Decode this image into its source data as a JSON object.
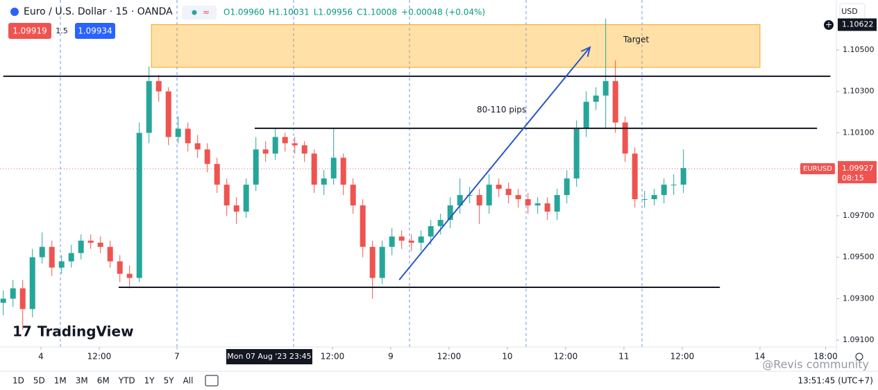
{
  "header": {
    "title": "Euro / U.S. Dollar · 15 · OANDA",
    "ohlc": [
      "O1.09960",
      "H1.10031",
      "L1.09956",
      "C1.10008",
      "+0.00048 (+0.04%)"
    ],
    "sell": "1.09919",
    "spread": "1.5",
    "buy": "1.09934",
    "currency": "USD"
  },
  "chart_data": {
    "type": "candlestick",
    "x": [
      -31,
      -23,
      -15,
      -7,
      1,
      9,
      17,
      25,
      33,
      41,
      49,
      57,
      65,
      73,
      81,
      89,
      97,
      105,
      113,
      121,
      129,
      137,
      145,
      153,
      161,
      169,
      177,
      185,
      193,
      201,
      209,
      217,
      225,
      233,
      241,
      249,
      257,
      265,
      273,
      281,
      289,
      297,
      305,
      313,
      321,
      329,
      337,
      345,
      353,
      361,
      369,
      377,
      385,
      393,
      401,
      409,
      417,
      425,
      433,
      441,
      449,
      457,
      465,
      473,
      481,
      489,
      497,
      505,
      513,
      521,
      529
    ],
    "series": [
      {
        "name": "EURUSD",
        "up_color": "#26a69a",
        "down_color": "#ef5350",
        "open": [
          1.0928,
          1.093,
          1.0935,
          1.0925,
          1.095,
          1.0955,
          1.0945,
          1.0948,
          1.0952,
          1.0958,
          1.0957,
          1.0955,
          1.0948,
          1.0942,
          1.094,
          1.101,
          1.1035,
          1.103,
          1.1008,
          1.1012,
          1.1005,
          1.1002,
          1.0995,
          1.0985,
          1.0975,
          1.0972,
          1.0985,
          1.1002,
          1.1,
          1.1008,
          1.1005,
          1.1004,
          1.1,
          1.0985,
          1.0988,
          1.0998,
          1.0985,
          1.0975,
          1.0955,
          1.094,
          1.0955,
          1.096,
          1.0958,
          1.0957,
          1.096,
          1.0965,
          1.0968,
          1.0975,
          1.098,
          1.098,
          1.0975,
          1.0985,
          1.0983,
          1.098,
          1.0978,
          1.0975,
          1.0976,
          1.0972,
          1.098,
          1.0988,
          1.1012,
          1.1025,
          1.1028,
          1.1035,
          1.1015,
          1.1,
          1.0978,
          1.0978,
          1.098,
          1.0985,
          1.0985
        ],
        "high": [
          1.0934,
          1.0939,
          1.0939,
          1.0954,
          1.0962,
          1.0958,
          1.0951,
          1.0956,
          1.0961,
          1.0961,
          1.096,
          1.0958,
          1.0951,
          1.0946,
          1.1015,
          1.1042,
          1.1038,
          1.1032,
          1.1018,
          1.1015,
          1.1009,
          1.1005,
          1.0998,
          1.0988,
          1.0979,
          1.0988,
          1.1008,
          1.1006,
          1.1012,
          1.101,
          1.1008,
          1.1006,
          1.1002,
          1.0992,
          1.1012,
          1.1,
          1.0988,
          1.0978,
          1.0958,
          1.0958,
          1.0964,
          1.0963,
          1.0961,
          1.0963,
          1.0968,
          1.0971,
          1.0979,
          1.0988,
          1.0984,
          1.0983,
          1.099,
          1.0988,
          1.0986,
          1.0983,
          1.0981,
          1.0979,
          1.0979,
          1.0983,
          1.0992,
          1.1016,
          1.103,
          1.1032,
          1.1065,
          1.1045,
          1.1018,
          1.1003,
          1.0982,
          1.0983,
          1.0988,
          1.099,
          1.1002
        ],
        "low": [
          1.0922,
          1.0926,
          1.0915,
          1.0921,
          1.0947,
          1.0941,
          1.0942,
          1.0945,
          1.0949,
          1.0954,
          1.0952,
          1.0945,
          1.0938,
          1.0935,
          1.0938,
          1.1005,
          1.1025,
          1.1004,
          1.1005,
          1.1001,
          1.0998,
          1.0991,
          1.0981,
          1.097,
          1.0966,
          1.0969,
          1.0982,
          1.0996,
          1.0997,
          1.1001,
          1.1,
          1.0996,
          1.0981,
          1.098,
          1.0985,
          1.098,
          1.0971,
          1.095,
          1.093,
          1.0937,
          1.0951,
          1.0954,
          1.0953,
          1.0953,
          1.0956,
          1.0961,
          1.0964,
          1.0971,
          1.0976,
          1.0966,
          1.0971,
          1.0979,
          1.0976,
          1.0974,
          1.0971,
          1.0971,
          1.0968,
          1.0968,
          1.0976,
          1.0984,
          1.1008,
          1.1021,
          1.1012,
          1.101,
          1.0996,
          1.0974,
          1.0974,
          1.0975,
          1.0976,
          1.098,
          1.0981
        ],
        "close": [
          1.093,
          1.0935,
          1.0925,
          1.095,
          1.0955,
          1.0945,
          1.0948,
          1.0952,
          1.0958,
          1.0957,
          1.0955,
          1.0948,
          1.0942,
          1.094,
          1.101,
          1.1035,
          1.103,
          1.1008,
          1.1012,
          1.1005,
          1.1002,
          1.0995,
          1.0985,
          1.0975,
          1.0972,
          1.0985,
          1.1002,
          1.1,
          1.1008,
          1.1005,
          1.1004,
          1.1,
          1.0985,
          1.0988,
          1.0998,
          1.0985,
          1.0975,
          1.0955,
          1.094,
          1.0955,
          1.096,
          1.0958,
          1.0957,
          1.096,
          1.0965,
          1.0968,
          1.0975,
          1.098,
          1.098,
          1.0975,
          1.0985,
          1.0983,
          1.098,
          1.0978,
          1.0975,
          1.0976,
          1.0972,
          1.098,
          1.0988,
          1.1012,
          1.1025,
          1.1028,
          1.1035,
          1.1015,
          1.1,
          1.0978,
          1.0978,
          1.098,
          1.0985,
          1.0985,
          1.0993
        ]
      }
    ],
    "xlim": [
      -33.7,
      654.9
    ],
    "ylim": [
      1.09067,
      1.10741
    ],
    "xticks": [
      {
        "value": 0,
        "label": "4"
      },
      {
        "value": 48,
        "label": "12:00"
      },
      {
        "value": 112,
        "label": "7"
      },
      {
        "value": 240,
        "label": "12:00"
      },
      {
        "value": 288,
        "label": "9"
      },
      {
        "value": 336,
        "label": "12:00"
      },
      {
        "value": 384,
        "label": "10"
      },
      {
        "value": 432,
        "label": "12:00"
      },
      {
        "value": 480,
        "label": "11"
      },
      {
        "value": 528,
        "label": "12:00"
      },
      {
        "value": 592,
        "label": "14"
      },
      {
        "value": 646,
        "label": "18:00"
      }
    ],
    "yticks": [
      {
        "value": 1.091,
        "label": "1.09100"
      },
      {
        "value": 1.093,
        "label": "1.09300"
      },
      {
        "value": 1.095,
        "label": "1.09500"
      },
      {
        "value": 1.097,
        "label": "1.09700"
      },
      {
        "value": 1.101,
        "label": "1.10100"
      },
      {
        "value": 1.103,
        "label": "1.10300"
      },
      {
        "value": 1.105,
        "label": "1.10500"
      }
    ],
    "crosshair": {
      "x": 188,
      "label": "Mon 07 Aug '23   23:45"
    },
    "axis_marker": 1.10622,
    "last_price": 1.09927,
    "symbol": "EURUSD",
    "countdown": "08:15",
    "target_zone": {
      "label": "Target",
      "x": [
        91,
        592
      ],
      "y": [
        1.10416,
        1.10622
      ]
    },
    "levels": [
      {
        "x": [
          -31,
          650
        ],
        "y": 1.10373
      },
      {
        "x": [
          176,
          639
        ],
        "y": 1.10122
      },
      {
        "x": [
          64,
          559
        ],
        "y": 1.09355
      }
    ],
    "arrow": {
      "label": "80-110 pips",
      "x": [
        295,
        452
      ],
      "y": [
        1.09391,
        1.10513
      ]
    }
  },
  "footer": {
    "ranges": [
      "1D",
      "5D",
      "1M",
      "3M",
      "6M",
      "YTD",
      "1Y",
      "5Y",
      "All"
    ],
    "clock": "13:51:45 (UTC+7)",
    "logo": "TradingView",
    "watermark": "@Revis community"
  }
}
